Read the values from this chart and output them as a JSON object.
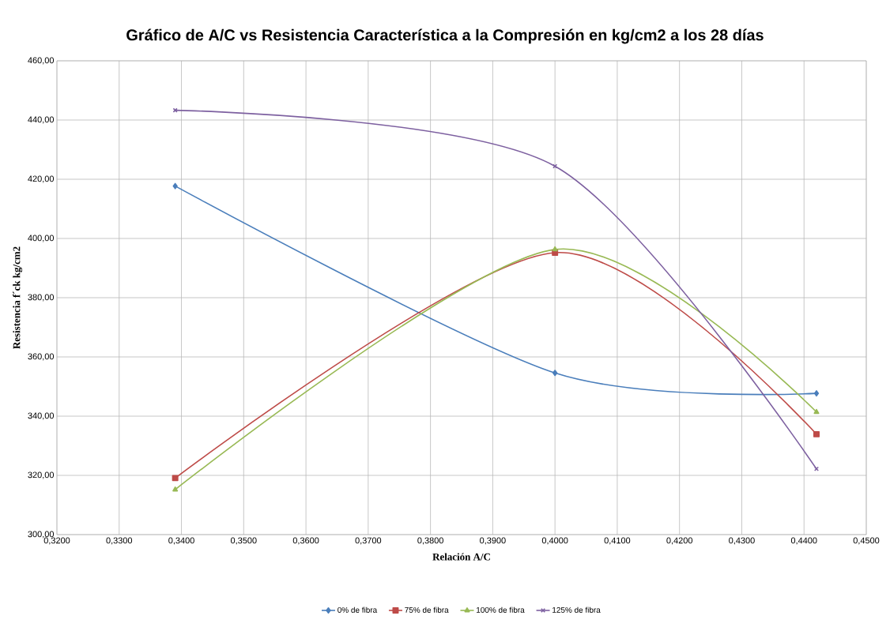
{
  "chart_data": {
    "type": "line",
    "title": "Gráfico de A/C vs Resistencia Característica a la Compresión en kg/cm2 a los 28 días",
    "xlabel": "Relación A/C",
    "ylabel": "Resistencia  f´ck  kg/cm2",
    "x": [
      0.339,
      0.4,
      0.442
    ],
    "series": [
      {
        "name": "0% de fibra",
        "color": "#4a7ebb",
        "marker": "diamond",
        "values": [
          417.7,
          354.6,
          347.7
        ]
      },
      {
        "name": "75% de fibra",
        "color": "#be4b48",
        "marker": "square",
        "values": [
          319.1,
          395.2,
          333.9
        ]
      },
      {
        "name": "100% de fibra",
        "color": "#98b954",
        "marker": "triangle",
        "values": [
          315.2,
          396.3,
          341.4
        ]
      },
      {
        "name": "125% de fibra",
        "color": "#7d60a0",
        "marker": "cross",
        "values": [
          443.3,
          424.4,
          322.2
        ]
      }
    ],
    "xlim": [
      0.32,
      0.45
    ],
    "xticks": [
      {
        "value": 0.32,
        "label": "0,3200"
      },
      {
        "value": 0.33,
        "label": "0,3300"
      },
      {
        "value": 0.34,
        "label": "0,3400"
      },
      {
        "value": 0.35,
        "label": "0,3500"
      },
      {
        "value": 0.36,
        "label": "0,3600"
      },
      {
        "value": 0.37,
        "label": "0,3700"
      },
      {
        "value": 0.38,
        "label": "0,3800"
      },
      {
        "value": 0.39,
        "label": "0,3900"
      },
      {
        "value": 0.4,
        "label": "0,4000"
      },
      {
        "value": 0.41,
        "label": "0,4100"
      },
      {
        "value": 0.42,
        "label": "0,4200"
      },
      {
        "value": 0.43,
        "label": "0,4300"
      },
      {
        "value": 0.44,
        "label": "0,4400"
      },
      {
        "value": 0.45,
        "label": "0,4500"
      }
    ],
    "ylim": [
      300,
      460
    ],
    "yticks": [
      {
        "value": 300,
        "label": "300,00"
      },
      {
        "value": 320,
        "label": "320,00"
      },
      {
        "value": 340,
        "label": "340,00"
      },
      {
        "value": 360,
        "label": "360,00"
      },
      {
        "value": 380,
        "label": "380,00"
      },
      {
        "value": 400,
        "label": "400,00"
      },
      {
        "value": 420,
        "label": "420,00"
      },
      {
        "value": 440,
        "label": "440,00"
      },
      {
        "value": 460,
        "label": "460,00"
      }
    ],
    "grid": true,
    "legend": "bottom",
    "line_style": "solid"
  }
}
